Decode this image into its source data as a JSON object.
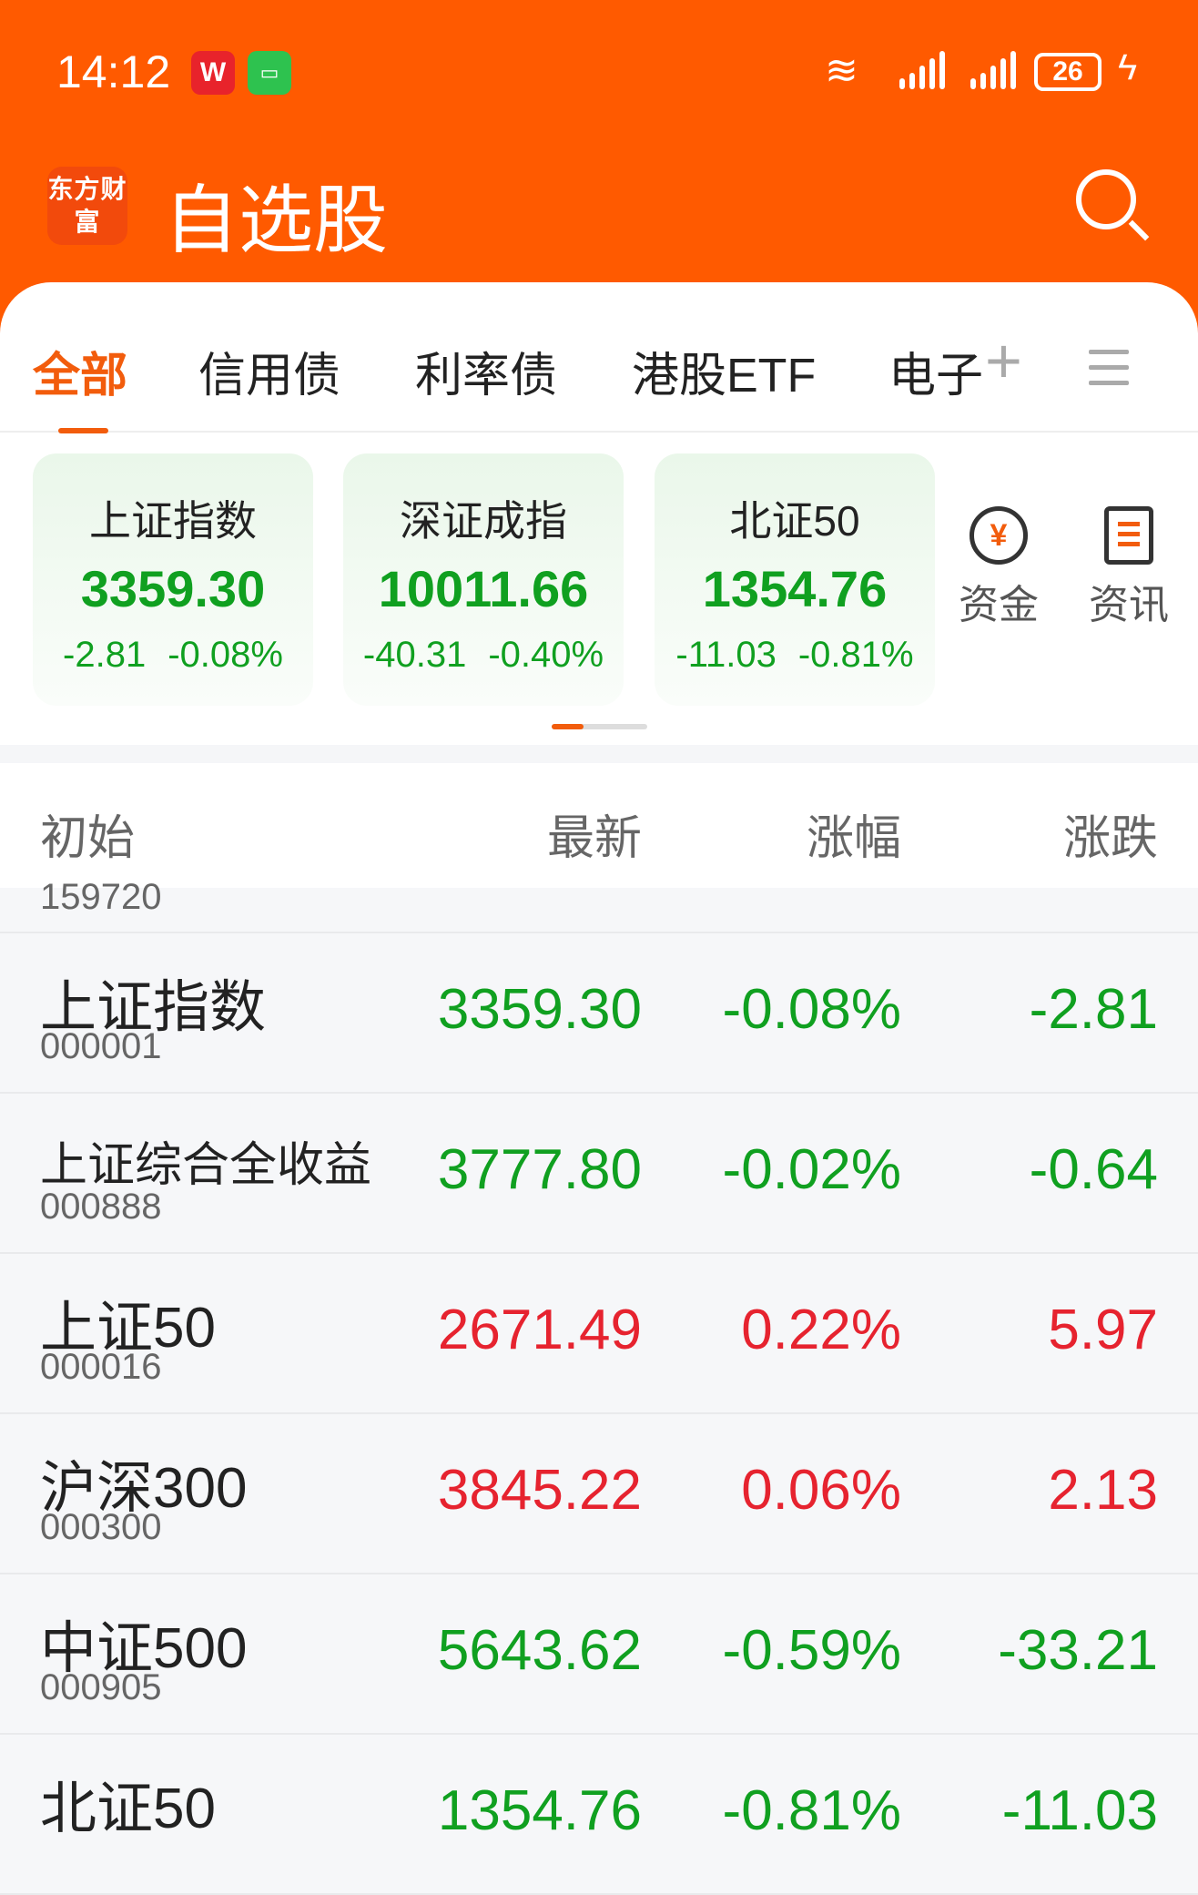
{
  "status_bar": {
    "time": "14:12",
    "app_badge_1": "W",
    "battery": "26"
  },
  "header": {
    "logo_text": "东方财富",
    "title": "自选股"
  },
  "tabs": [
    {
      "label": "全部",
      "active": true
    },
    {
      "label": "信用债"
    },
    {
      "label": "利率债"
    },
    {
      "label": "港股ETF"
    },
    {
      "label": "电子"
    }
  ],
  "index_cards": [
    {
      "name": "上证指数",
      "value": "3359.30",
      "change": "-2.81",
      "pct": "-0.08%"
    },
    {
      "name": "深证成指",
      "value": "10011.66",
      "change": "-40.31",
      "pct": "-0.40%"
    },
    {
      "name": "北证50",
      "value": "1354.76",
      "change": "-11.03",
      "pct": "-0.81%"
    }
  ],
  "shortcuts": [
    {
      "label": "资金",
      "icon": "yuan-cycle-icon"
    },
    {
      "label": "资讯",
      "icon": "news-icon"
    }
  ],
  "table": {
    "headers": [
      "初始",
      "最新",
      "涨幅",
      "涨跌"
    ],
    "partial_row_code": "159720",
    "rows": [
      {
        "name": "上证指数",
        "code": "000001",
        "latest": "3359.30",
        "pct": "-0.08%",
        "change": "-2.81",
        "dir": "down"
      },
      {
        "name": "上证综合全收益",
        "code": "000888",
        "latest": "3777.80",
        "pct": "-0.02%",
        "change": "-0.64",
        "dir": "down"
      },
      {
        "name": "上证50",
        "code": "000016",
        "latest": "2671.49",
        "pct": "0.22%",
        "change": "5.97",
        "dir": "up"
      },
      {
        "name": "沪深300",
        "code": "000300",
        "latest": "3845.22",
        "pct": "0.06%",
        "change": "2.13",
        "dir": "up"
      },
      {
        "name": "中证500",
        "code": "000905",
        "latest": "5643.62",
        "pct": "-0.59%",
        "change": "-33.21",
        "dir": "down"
      },
      {
        "name": "北证50",
        "code": "",
        "latest": "1354.76",
        "pct": "-0.81%",
        "change": "-11.03",
        "dir": "down"
      }
    ]
  },
  "colors": {
    "brand": "#ff5a00",
    "up": "#e6232f",
    "down": "#10a020"
  }
}
